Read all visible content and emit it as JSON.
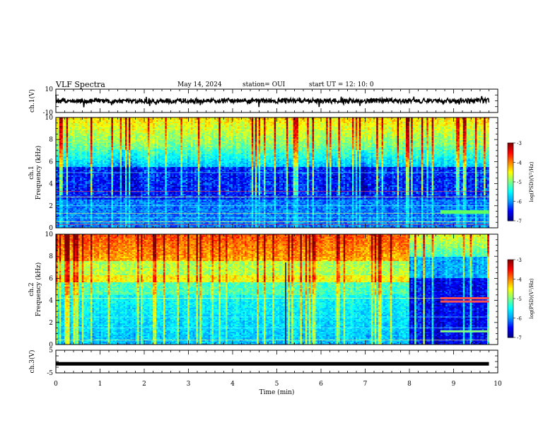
{
  "header": {
    "title": "VLF Spectra",
    "date": "May 14, 2024",
    "station": "station= OUI",
    "start": "start  UT =   12: 10: 0"
  },
  "chart_data": [
    {
      "type": "line",
      "name": "ch1-voltage",
      "ylabel": "ch.1(V)",
      "ylim": [
        -10,
        10
      ],
      "yticks": [
        "10",
        "-10"
      ],
      "xlim": [
        0,
        10
      ],
      "trace_level_v": 0,
      "trace_color": "#000000"
    },
    {
      "type": "heatmap",
      "name": "ch1-spectrogram",
      "ylabel": "ch.1\nFrequency  (kHz)",
      "ylim": [
        0,
        10
      ],
      "yticks": [
        "0",
        "2",
        "4",
        "6",
        "8",
        "10"
      ],
      "xlim": [
        0,
        10
      ],
      "data_end_min": 9.8,
      "colorbar": {
        "label": "log(PSD)(V²/Hz)",
        "ticks": [
          "-3",
          "-4",
          "-5",
          "-6",
          "-7"
        ],
        "range": [
          -7,
          -3
        ]
      }
    },
    {
      "type": "heatmap",
      "name": "ch2-spectrogram",
      "ylabel": "ch.2\nFrequency  (kHz)",
      "ylim": [
        0,
        10
      ],
      "yticks": [
        "0",
        "2",
        "4",
        "6",
        "8",
        "10"
      ],
      "xlim": [
        0,
        10
      ],
      "data_end_min": 9.8,
      "regime_change_min": 8.0,
      "colorbar": {
        "label": "log(PSD)(V²/Hz)",
        "ticks": [
          "-3",
          "-4",
          "-5",
          "-6",
          "-7"
        ],
        "range": [
          -7,
          -3
        ]
      }
    },
    {
      "type": "line",
      "name": "ch3-voltage",
      "ylabel": "ch.3(V)",
      "ylim": [
        -5,
        5
      ],
      "yticks": [
        "5",
        "-5"
      ],
      "xlim": [
        0,
        10
      ],
      "trace_level_v": -1,
      "trace_color": "#000000"
    }
  ],
  "x_axis": {
    "label": "Time  (min)",
    "ticks": [
      "0",
      "1",
      "2",
      "3",
      "4",
      "5",
      "6",
      "7",
      "8",
      "9",
      "10"
    ]
  },
  "colors": {
    "colormap": [
      "#00007f",
      "#0000ff",
      "#00a0ff",
      "#00ffff",
      "#7fff7f",
      "#ffff00",
      "#ff7f00",
      "#ff0000",
      "#7f0000"
    ]
  }
}
